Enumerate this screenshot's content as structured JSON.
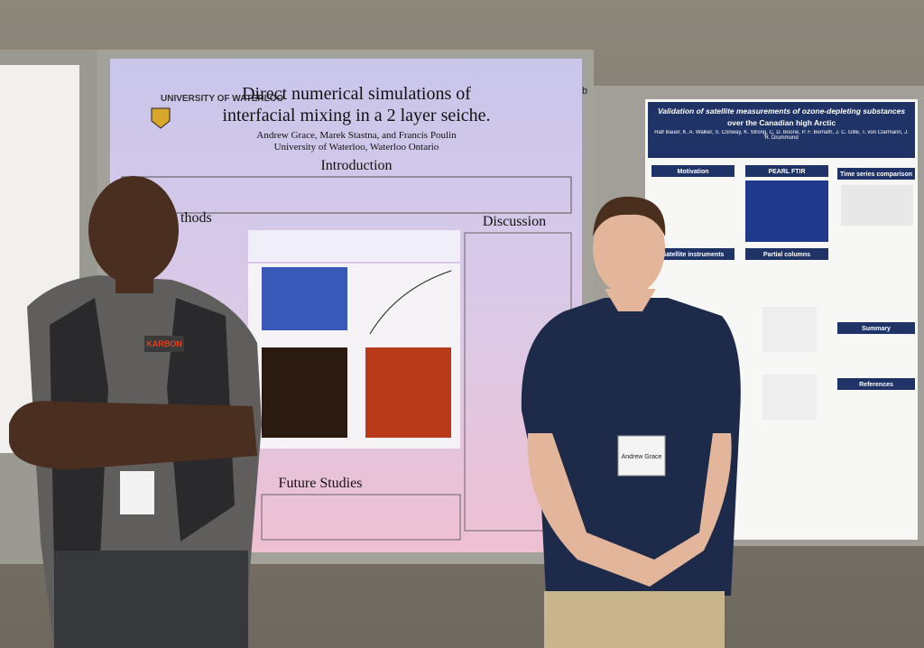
{
  "left_poster": {
    "title_lines": [
      "Direct numerical simulations of",
      "interfacial mixing in a 2 layer seiche."
    ],
    "logo": "UNIVERSITY OF WATERLOO",
    "authors": "Andrew Grace, Marek Stastna, and Francis Poulin",
    "affiliation": "University of Waterloo, Waterloo Ontario",
    "sections": [
      "Introduction",
      "thods",
      "Discussion",
      "Future Studies"
    ]
  },
  "board_label": "b",
  "right_poster": {
    "title_lines": [
      "Validation of satellite measurements of ozone-depleting substances",
      "over the Canadian high Arctic"
    ],
    "authors": "Ralf Bauer, K. A. Walker, S. Conway, K. Strong, C. D. Boone, P. F. Bernath, J. C. Gille, T. von Clarmann, J. R. Drummond",
    "sections": [
      "Motivation",
      "PEARL FTIR",
      "Time series comparison",
      "Satellite instruments",
      "Partial columns",
      "Summary",
      "References"
    ]
  },
  "shirt_logo": "KARBON",
  "badge_name": "Andrew Grace"
}
